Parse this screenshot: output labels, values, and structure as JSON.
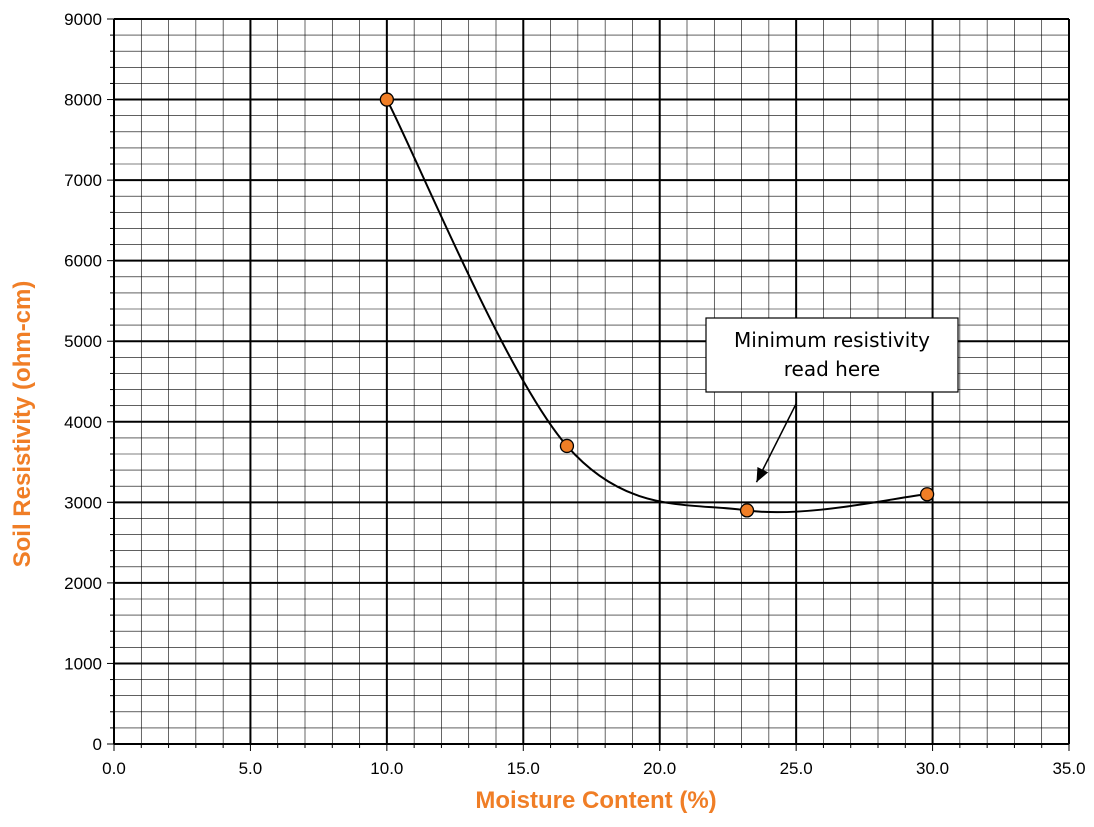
{
  "chart_data": {
    "type": "scatter",
    "title": "",
    "xlabel": "Moisture Content (%)",
    "ylabel": "Soil Resistivity (ohm-cm)",
    "xlim": [
      0,
      35
    ],
    "ylim": [
      0,
      9000
    ],
    "x_ticks": [
      "0.0",
      "5.0",
      "10.0",
      "15.0",
      "20.0",
      "25.0",
      "30.0",
      "35.0"
    ],
    "y_ticks": [
      "0",
      "1000",
      "2000",
      "3000",
      "4000",
      "5000",
      "6000",
      "7000",
      "8000",
      "9000"
    ],
    "grid": true,
    "smoothed_line": true,
    "series": [
      {
        "x": [
          10.0,
          16.6,
          23.2,
          29.8
        ],
        "y": [
          8000,
          3700,
          2900,
          3100
        ]
      }
    ],
    "annotations": [
      {
        "lines": [
          "Minimum resistivity",
          "read here"
        ],
        "points_to": {
          "x": 23.4,
          "y": 3200
        }
      }
    ],
    "colors": {
      "marker_fill": "#F07E26",
      "marker_edge": "#000000",
      "axis_title": "#F07E26",
      "grid_major": "#000000",
      "grid_minor": "#000000",
      "line": "#000000"
    }
  }
}
